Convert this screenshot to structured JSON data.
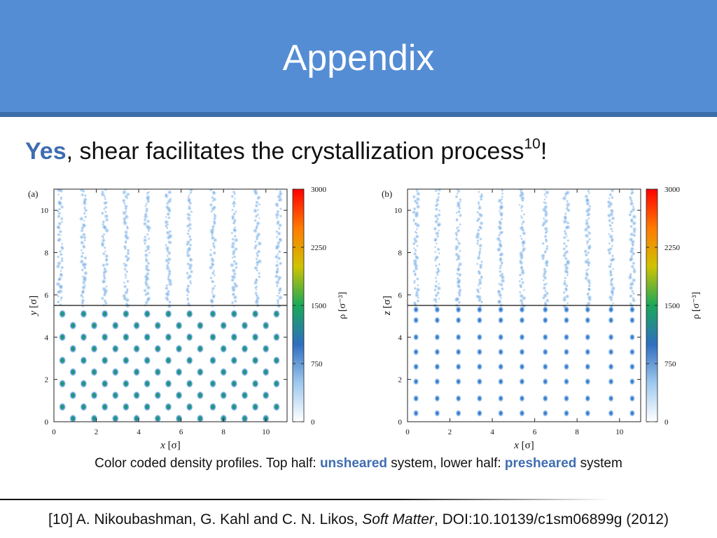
{
  "slide": {
    "title": "Appendix",
    "headline": {
      "emphasis": "Yes",
      "text": ", shear facilitates the crystallization process",
      "superscript": "10",
      "end": "!"
    },
    "caption": {
      "part1": "Color coded density profiles. Top half: ",
      "hl1": "unsheared",
      "part2": " system, lower half: ",
      "hl2": "presheared",
      "part3": " system"
    },
    "reference": {
      "part1": "[10] A. Nikoubashman, G. Kahl and C. N. Likos, ",
      "journal": "Soft Matter",
      "part2": ", DOI:10.10139/c1sm06899g (2012)"
    }
  },
  "colors": {
    "header": "#548dd4",
    "header_stripe": "#3c6ea8",
    "accent_text": "#3f6db0",
    "colormap": [
      "#ffffff",
      "#9ec8ee",
      "#2f6ec0",
      "#1aa85a",
      "#cfc300",
      "#ff7a00",
      "#ff0000"
    ]
  },
  "chart_data": [
    {
      "type": "heatmap",
      "panel_label": "(a)",
      "xlabel": "x",
      "xunit": "[σ]",
      "ylabel": "y",
      "yunit": "[σ]",
      "xlim": [
        0,
        11
      ],
      "ylim": [
        0,
        11
      ],
      "x_ticks": [
        "0",
        "2",
        "4",
        "6",
        "8",
        "10"
      ],
      "y_ticks": [
        "0",
        "2",
        "4",
        "6",
        "8",
        "10"
      ],
      "divider_at": 5.5,
      "colorbar": {
        "label": "ρ",
        "unit": "[σ⁻³]",
        "ticks": [
          "0",
          "750",
          "1500",
          "2250",
          "3000"
        ],
        "range": [
          0,
          3000
        ]
      },
      "top_half": {
        "state": "unsheared",
        "column_x": [
          0.3,
          1.4,
          2.4,
          3.4,
          4.4,
          5.4,
          6.4,
          7.5,
          8.5,
          9.6,
          10.6
        ]
      },
      "lower_half": {
        "state": "presheared",
        "layer_y": [
          0.7,
          1.8,
          2.9,
          4.0,
          5.1
        ],
        "row_x_even": [
          0.4,
          1.4,
          2.4,
          3.4,
          4.4,
          5.4,
          6.4,
          7.5,
          8.5,
          9.5,
          10.5
        ],
        "row_x_odd": [
          0.9,
          1.9,
          2.9,
          3.9,
          4.9,
          5.9,
          6.9,
          8.0,
          9.0,
          10.0
        ],
        "row_spacing": 0.55
      }
    },
    {
      "type": "heatmap",
      "panel_label": "(b)",
      "xlabel": "x",
      "xunit": "[σ]",
      "ylabel": "z",
      "yunit": "[σ]",
      "xlim": [
        0,
        11
      ],
      "ylim": [
        0,
        11
      ],
      "x_ticks": [
        "0",
        "2",
        "4",
        "6",
        "8",
        "10"
      ],
      "y_ticks": [
        "0",
        "2",
        "4",
        "6",
        "8",
        "10"
      ],
      "divider_at": 5.5,
      "colorbar": {
        "label": "ρ",
        "unit": "[σ⁻³]",
        "ticks": [
          "0",
          "750",
          "1500",
          "2250",
          "3000"
        ],
        "range": [
          0,
          3000
        ]
      },
      "top_half": {
        "state": "unsheared",
        "column_x": [
          0.4,
          1.4,
          2.4,
          3.4,
          4.4,
          5.4,
          6.5,
          7.5,
          8.5,
          9.6,
          10.6
        ]
      },
      "lower_half": {
        "state": "presheared",
        "column_x": [
          0.4,
          1.4,
          2.4,
          3.4,
          4.4,
          5.4,
          6.5,
          7.5,
          8.5,
          9.6,
          10.6
        ],
        "row_y": [
          0.4,
          1.1,
          1.9,
          2.6,
          3.3,
          4.0,
          4.8,
          5.3
        ]
      }
    }
  ]
}
